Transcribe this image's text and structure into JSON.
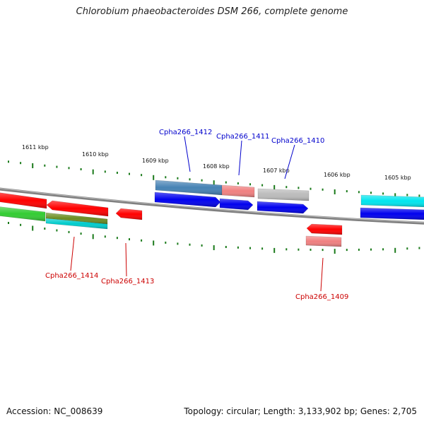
{
  "title": "Chlorobium phaeobacteroides DSM 266, complete genome",
  "footer": {
    "accession": "Accession: NC_008639",
    "summary": "Topology: circular; Length: 3,133,902 bp; Genes: 2,705"
  },
  "colors": {
    "tick": "#1a7a1a",
    "backbone": "#808080",
    "label_forward": "#0000cc",
    "label_reverse": "#cc0000"
  },
  "scale_labels": [
    "1611 kbp",
    "1610 kbp",
    "1609 kbp",
    "1608 kbp",
    "1607 kbp",
    "1606 kbp",
    "1605 kbp"
  ],
  "gene_labels": [
    {
      "text": "Cpha266_1412",
      "strand": "forward"
    },
    {
      "text": "Cpha266_1411",
      "strand": "forward"
    },
    {
      "text": "Cpha266_1410",
      "strand": "forward"
    },
    {
      "text": "Cpha266_1414",
      "strand": "reverse"
    },
    {
      "text": "Cpha266_1413",
      "strand": "reverse"
    },
    {
      "text": "Cpha266_1409",
      "strand": "reverse"
    }
  ],
  "features": [
    {
      "id": "f1",
      "color": "#ff0000"
    },
    {
      "id": "f2",
      "color": "#ff0000"
    },
    {
      "id": "f3",
      "color": "#ff0000"
    },
    {
      "id": "f4",
      "color": "#33cc33"
    },
    {
      "id": "f5",
      "color": "#6b8e23"
    },
    {
      "id": "f6",
      "color": "#00cccc"
    },
    {
      "id": "f7",
      "color": "#4682b4"
    },
    {
      "id": "f8",
      "color": "#f08080"
    },
    {
      "id": "f9",
      "color": "#bbbbbb"
    },
    {
      "id": "f10",
      "color": "#0000ee"
    },
    {
      "id": "f11",
      "color": "#0000ee"
    },
    {
      "id": "f12",
      "color": "#0000ee"
    },
    {
      "id": "f13",
      "color": "#00e5ee"
    },
    {
      "id": "f14",
      "color": "#0000ee"
    },
    {
      "id": "f15",
      "color": "#ff0000"
    },
    {
      "id": "f16",
      "color": "#f08080"
    }
  ]
}
